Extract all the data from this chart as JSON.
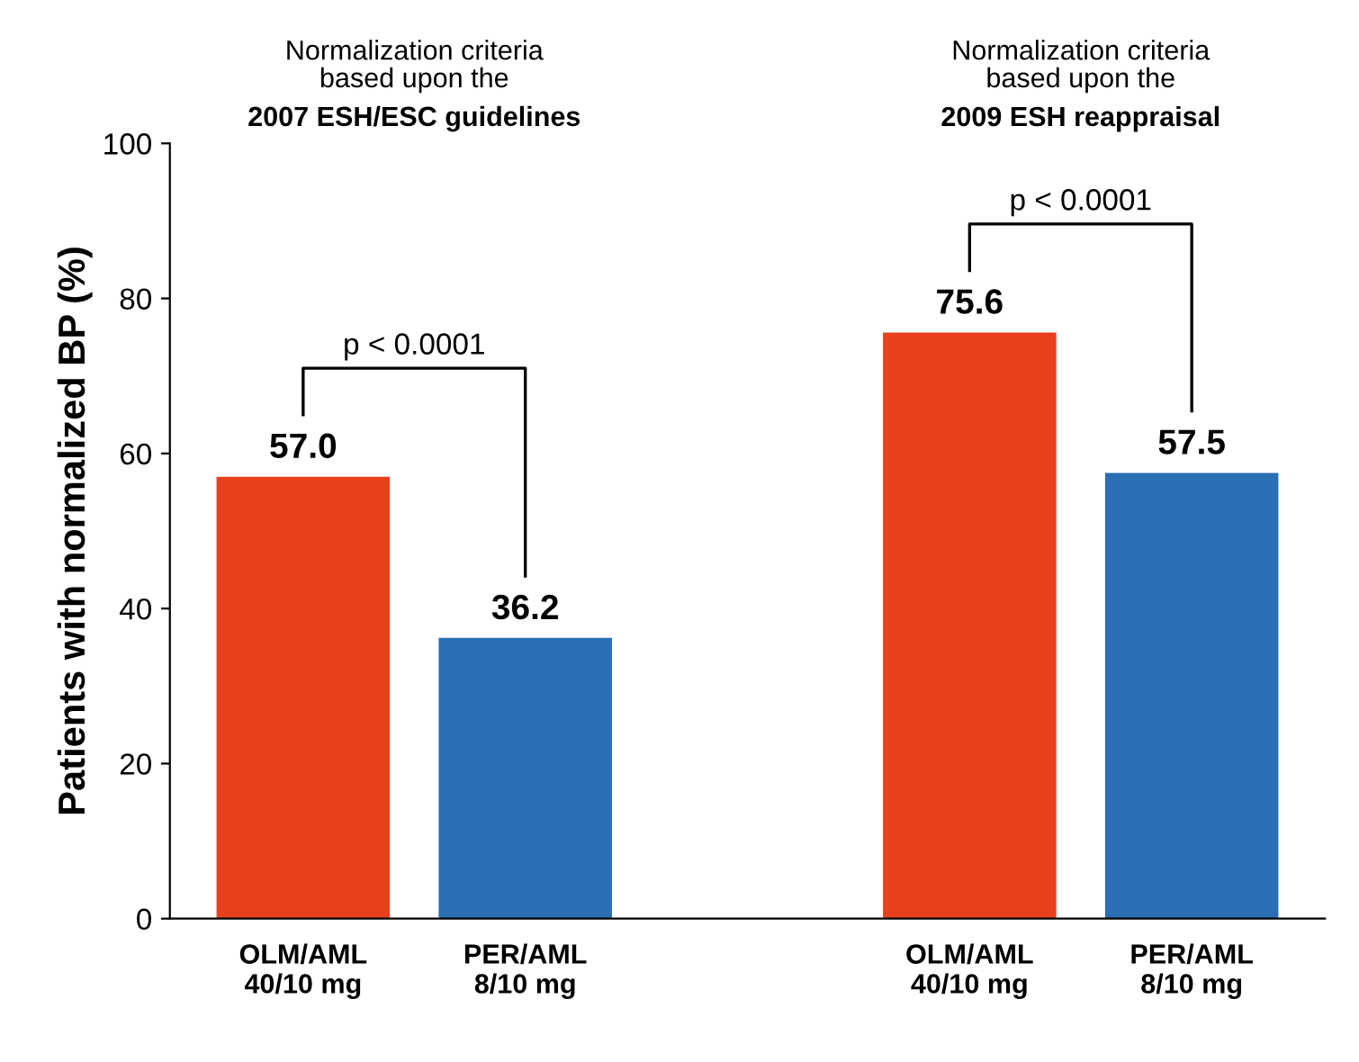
{
  "chart_data": {
    "type": "bar",
    "categories": [
      "OLM/AML\n40/10 mg",
      "PER/AML\n8/10 mg",
      null,
      "OLM/AML\n40/10 mg",
      "PER/AML\n8/10 mg"
    ],
    "values": [
      57.0,
      36.2,
      null,
      75.6,
      57.5
    ],
    "colors": [
      "#e8401c",
      "#2a6eb4",
      null,
      "#e8401c",
      "#2a6eb4"
    ],
    "ylabel": "Patients with normalized BP (%)",
    "ylim": [
      0,
      100
    ],
    "yticks": [
      0,
      20,
      40,
      60,
      80,
      100
    ],
    "value_labels": [
      "57.0",
      "36.2",
      null,
      "75.6",
      "57.5"
    ],
    "grid": false,
    "legend": false,
    "annotations": [
      "Normalization criteria\nbased upon the",
      "2007 ESH/ESC guidelines",
      "Normalization criteria\nbased upon the",
      "2009 ESH reappraisal",
      "p < 0.0001",
      "p < 0.0001"
    ]
  }
}
